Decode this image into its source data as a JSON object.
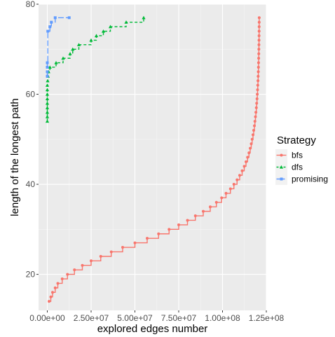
{
  "chart_data": {
    "type": "line",
    "title": "",
    "xlabel": "explored edges number",
    "ylabel": "length of the longest path",
    "xlim": [
      -5000000,
      125000000
    ],
    "ylim": [
      12,
      80
    ],
    "x_ticks": [
      {
        "value": 0,
        "label": "0.00e+00"
      },
      {
        "value": 25000000,
        "label": "2.50e+07"
      },
      {
        "value": 50000000,
        "label": "5.00e+07"
      },
      {
        "value": 75000000,
        "label": "7.50e+07"
      },
      {
        "value": 100000000,
        "label": "1.00e+08"
      },
      {
        "value": 125000000,
        "label": "1.25e+08"
      }
    ],
    "y_ticks": [
      {
        "value": 20,
        "label": "20"
      },
      {
        "value": 40,
        "label": "40"
      },
      {
        "value": 60,
        "label": "60"
      },
      {
        "value": 80,
        "label": "80"
      }
    ],
    "grid": true,
    "legend": {
      "title": "Strategy",
      "position": "right"
    },
    "series": [
      {
        "name": "bfs",
        "color": "#F8766D",
        "dash": "solid",
        "marker": "circle",
        "points": [
          [
            1000000,
            14
          ],
          [
            2000000,
            15
          ],
          [
            3000000,
            16
          ],
          [
            4500000,
            17
          ],
          [
            6000000,
            18
          ],
          [
            8500000,
            19
          ],
          [
            11500000,
            20
          ],
          [
            15500000,
            21
          ],
          [
            20000000,
            22
          ],
          [
            25000000,
            23
          ],
          [
            30500000,
            24
          ],
          [
            36500000,
            25
          ],
          [
            43000000,
            26
          ],
          [
            50000000,
            27
          ],
          [
            57000000,
            28
          ],
          [
            63500000,
            29
          ],
          [
            69500000,
            30
          ],
          [
            75000000,
            31
          ],
          [
            80000000,
            32
          ],
          [
            84500000,
            33
          ],
          [
            89000000,
            34
          ],
          [
            93000000,
            35
          ],
          [
            96500000,
            36
          ],
          [
            99500000,
            37
          ],
          [
            102000000,
            38
          ],
          [
            104500000,
            39
          ],
          [
            106500000,
            40
          ],
          [
            108300000,
            41
          ],
          [
            109800000,
            42
          ],
          [
            111200000,
            43
          ],
          [
            112400000,
            44
          ],
          [
            113400000,
            45
          ],
          [
            114300000,
            46
          ],
          [
            115100000,
            47
          ],
          [
            115800000,
            48
          ],
          [
            116400000,
            49
          ],
          [
            116900000,
            50
          ],
          [
            117400000,
            51
          ],
          [
            117800000,
            52
          ],
          [
            118200000,
            53
          ],
          [
            118500000,
            54
          ],
          [
            118800000,
            55
          ],
          [
            119050000,
            56
          ],
          [
            119300000,
            57
          ],
          [
            119500000,
            58
          ],
          [
            119700000,
            59
          ],
          [
            119850000,
            60
          ],
          [
            120000000,
            61
          ],
          [
            120120000,
            62
          ],
          [
            120240000,
            63
          ],
          [
            120340000,
            64
          ],
          [
            120430000,
            65
          ],
          [
            120510000,
            66
          ],
          [
            120580000,
            67
          ],
          [
            120640000,
            68
          ],
          [
            120700000,
            69
          ],
          [
            120750000,
            70
          ],
          [
            120790000,
            71
          ],
          [
            120830000,
            72
          ],
          [
            120860000,
            73
          ],
          [
            120890000,
            74
          ],
          [
            120910000,
            75
          ],
          [
            120930000,
            76
          ],
          [
            120950000,
            77
          ]
        ]
      },
      {
        "name": "dfs",
        "color": "#00BA38",
        "dash": "dashed",
        "marker": "triangle",
        "points": [
          [
            0,
            54
          ],
          [
            0,
            55
          ],
          [
            0,
            56
          ],
          [
            0,
            57
          ],
          [
            0,
            58
          ],
          [
            0,
            59
          ],
          [
            0,
            60
          ],
          [
            0,
            61
          ],
          [
            0,
            62
          ],
          [
            200000,
            63
          ],
          [
            400000,
            64
          ],
          [
            700000,
            65
          ],
          [
            1500000,
            66
          ],
          [
            5000000,
            67
          ],
          [
            9000000,
            68
          ],
          [
            13000000,
            69
          ],
          [
            14500000,
            70
          ],
          [
            18000000,
            71
          ],
          [
            25000000,
            72
          ],
          [
            28000000,
            73
          ],
          [
            32000000,
            74
          ],
          [
            36000000,
            75
          ],
          [
            45000000,
            76
          ],
          [
            55000000,
            77
          ]
        ]
      },
      {
        "name": "promising",
        "color": "#619CFF",
        "dash": "longdash",
        "marker": "square",
        "points": [
          [
            0,
            64
          ],
          [
            0,
            65
          ],
          [
            0,
            66
          ],
          [
            0,
            67
          ],
          [
            300000,
            74
          ],
          [
            1500000,
            75
          ],
          [
            2300000,
            76
          ],
          [
            4500000,
            77
          ],
          [
            12500000,
            77
          ]
        ]
      }
    ]
  }
}
